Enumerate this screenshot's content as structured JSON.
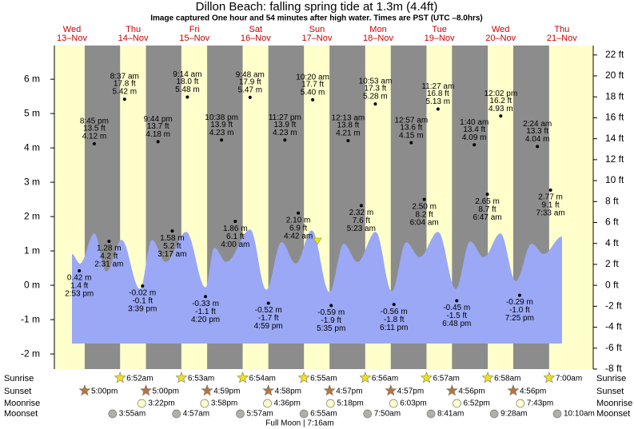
{
  "chart_data": {
    "type": "tide",
    "title": "Dillon Beach: falling  spring tide at 1.3m (4.4ft)",
    "subtitle": "Image captured One hour and 54 minutes after high water. Times are PST (UTC –8.0hrs)",
    "days": [
      "Wed",
      "Thu",
      "Fri",
      "Sat",
      "Sun",
      "Mon",
      "Tue",
      "Wed",
      "Thu"
    ],
    "dates": [
      "13–Nov",
      "14–Nov",
      "15–Nov",
      "16–Nov",
      "17–Nov",
      "18–Nov",
      "19–Nov",
      "20–Nov",
      "21–Nov"
    ],
    "ylim": [
      -2.44,
      6.98
    ],
    "yticks": [
      {
        "value": 6,
        "label": "6 m"
      },
      {
        "value": 5,
        "label": "5 m"
      },
      {
        "value": 4,
        "label": "4 m"
      },
      {
        "value": 3,
        "label": "3 m"
      },
      {
        "value": 2,
        "label": "2 m"
      },
      {
        "value": 1,
        "label": "1 m"
      },
      {
        "value": 0,
        "label": "0 m"
      },
      {
        "value": -1,
        "label": "-1 m"
      },
      {
        "value": -2,
        "label": "-2 m"
      }
    ],
    "y2lim": [
      -8,
      22.9
    ],
    "y2ticks": [
      {
        "value": 22,
        "label": "22 ft"
      },
      {
        "value": 20,
        "label": "20 ft"
      },
      {
        "value": 18,
        "label": "18 ft"
      },
      {
        "value": 16,
        "label": "16 ft"
      },
      {
        "value": 14,
        "label": "14 ft"
      },
      {
        "value": 12,
        "label": "12 ft"
      },
      {
        "value": 10,
        "label": "10 ft"
      },
      {
        "value": 8,
        "label": "8 ft"
      },
      {
        "value": 6,
        "label": "6 ft"
      },
      {
        "value": 4,
        "label": "4 ft"
      },
      {
        "value": 2,
        "label": "2 ft"
      },
      {
        "value": 0,
        "label": "0 ft"
      },
      {
        "value": -2,
        "label": "-2 ft"
      },
      {
        "value": -4,
        "label": "-4 ft"
      },
      {
        "value": -6,
        "label": "-6 ft"
      },
      {
        "value": -8,
        "label": "-8 ft"
      }
    ],
    "tides": {
      "times": [
        "2:53 pm",
        "8:45 pm",
        "2:31 am",
        "8:37 am",
        "3:39 pm",
        "9:44 pm",
        "3:17 am",
        "9:14 am",
        "4:20 pm",
        "10:38 pm",
        "4:00 am",
        "9:48 am",
        "4:59 pm",
        "11:27 pm",
        "4:42 am",
        "10:20 am",
        "5:35 pm",
        "12:13 am",
        "5:23 am",
        "10:53 am",
        "6:11 pm",
        "12:57 am",
        "6:04 am",
        "11:27 am",
        "6:48 pm",
        "1:40 am",
        "6:47 am",
        "12:02 pm",
        "7:25 pm",
        "2:24 am",
        "7:33 am"
      ],
      "values": [
        0.42,
        4.12,
        1.28,
        5.42,
        -0.02,
        4.18,
        1.58,
        5.48,
        -0.33,
        4.23,
        1.86,
        5.47,
        -0.52,
        4.23,
        2.1,
        5.4,
        -0.59,
        4.21,
        2.32,
        5.28,
        -0.56,
        4.15,
        2.5,
        5.13,
        -0.45,
        4.09,
        2.65,
        4.93,
        -0.29,
        4.04,
        2.77
      ],
      "value_labels": [
        "0.42 m",
        "4.12 m",
        "1.28 m",
        "5.42 m",
        "-0.02 m",
        "4.18 m",
        "1.58 m",
        "5.48 m",
        "-0.33 m",
        "4.23 m",
        "1.86 m",
        "5.47 m",
        "-0.52 m",
        "4.23 m",
        "2.10 m",
        "5.40 m",
        "-0.59 m",
        "4.21 m",
        "2.32 m",
        "5.28 m",
        "-0.56 m",
        "4.15 m",
        "2.50 m",
        "5.13 m",
        "-0.45 m",
        "4.09 m",
        "2.65 m",
        "4.93 m",
        "-0.29 m",
        "4.04 m",
        "2.77 m"
      ],
      "feet_labels": [
        "1.4 ft",
        "13.5 ft",
        "4.2 ft",
        "17.8 ft",
        "-0.1 ft",
        "13.7 ft",
        "5.2 ft",
        "18.0 ft",
        "-1.1 ft",
        "13.9 ft",
        "6.1 ft",
        "17.9 ft",
        "-1.7 ft",
        "13.9 ft",
        "6.9 ft",
        "17.7 ft",
        "-1.9 ft",
        "13.8 ft",
        "7.6 ft",
        "17.3 ft",
        "-1.8 ft",
        "13.6 ft",
        "8.2 ft",
        "16.8 ft",
        "-1.5 ft",
        "13.4 ft",
        "8.7 ft",
        "16.2 ft",
        "-1.0 ft",
        "13.3 ft",
        "9.1 ft"
      ]
    },
    "rows": [
      {
        "name": "Sunrise",
        "times": [
          null,
          "6:52am",
          "6:53am",
          "6:54am",
          "6:55am",
          "6:56am",
          "6:57am",
          "6:58am",
          "7:00am"
        ]
      },
      {
        "name": "Sunset",
        "times": [
          "5:00pm",
          "5:00pm",
          "4:59pm",
          "4:58pm",
          "4:57pm",
          "4:57pm",
          "4:56pm",
          "4:56pm",
          null
        ]
      },
      {
        "name": "Moonrise",
        "times": [
          null,
          "3:22pm",
          "3:58pm",
          "4:36pm",
          "5:18pm",
          "6:03pm",
          "6:52pm",
          "7:43pm",
          null
        ]
      },
      {
        "name": "Moonset",
        "times": [
          null,
          "3:55am",
          "4:57am",
          "5:57am",
          "6:55am",
          "7:50am",
          "8:41am",
          "9:28am",
          "10:10am"
        ]
      }
    ],
    "moon_phase": "Full Moon | 7:16am"
  }
}
